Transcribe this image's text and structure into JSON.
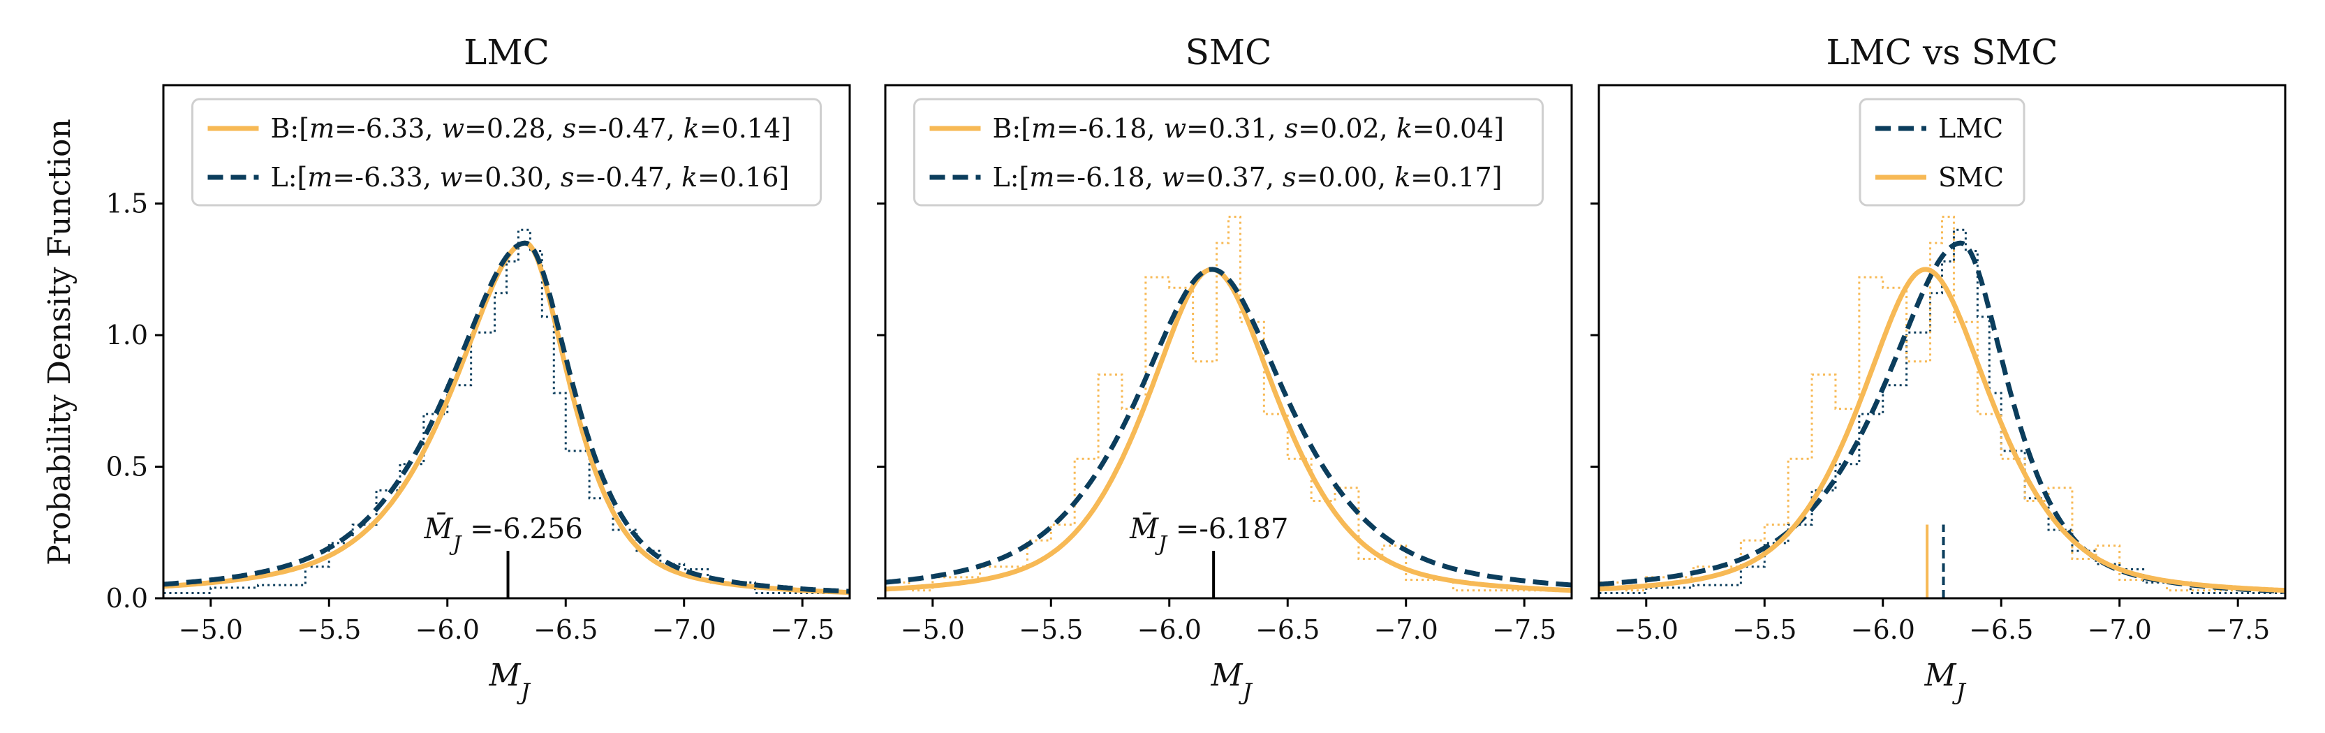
{
  "figure": {
    "ylabel": "Probability Density Function",
    "xlabel": "M_J",
    "xlim": [
      -4.8,
      -7.7
    ],
    "ylim": [
      0.0,
      1.95
    ],
    "xticks": [
      -5.0,
      -5.5,
      -6.0,
      -6.5,
      -7.0,
      -7.5
    ],
    "yticks": [
      0.0,
      0.5,
      1.0,
      1.5
    ],
    "colors": {
      "orange": "#f7b955",
      "navy": "#0b3d5c",
      "black": "#000000"
    }
  },
  "chart_data": [
    {
      "type": "line",
      "title": "LMC",
      "xlabel": "M_J",
      "ylabel": "Probability Density Function",
      "show_ylabels": true,
      "legend_position": "top-center",
      "legend": [
        {
          "label": "B:[m=-6.33, w=0.28, s=-0.47, k=0.14]",
          "color": "#f7b955",
          "style": "solid"
        },
        {
          "label": "L:[m=-6.33, w=0.30, s=-0.47, k=0.16]",
          "color": "#0b3d5c",
          "style": "dashed"
        }
      ],
      "series": [
        {
          "name": "B",
          "color": "#f7b955",
          "style": "solid",
          "m": -6.33,
          "w": 0.28,
          "s": -0.47,
          "k": 0.14,
          "peak": 1.35
        },
        {
          "name": "L",
          "color": "#0b3d5c",
          "style": "dashed",
          "m": -6.33,
          "w": 0.3,
          "s": -0.47,
          "k": 0.16,
          "peak": 1.35
        }
      ],
      "histograms": [
        {
          "color": "#0b3d5c",
          "edges": [
            -4.8,
            -5.0,
            -5.2,
            -5.4,
            -5.5,
            -5.6,
            -5.7,
            -5.8,
            -5.9,
            -6.0,
            -6.1,
            -6.2,
            -6.25,
            -6.3,
            -6.35,
            -6.4,
            -6.45,
            -6.5,
            -6.6,
            -6.7,
            -6.8,
            -6.9,
            -7.0,
            -7.1,
            -7.3,
            -7.7
          ],
          "values": [
            0.02,
            0.04,
            0.05,
            0.12,
            0.21,
            0.28,
            0.41,
            0.51,
            0.7,
            0.81,
            1.01,
            1.16,
            1.28,
            1.4,
            1.32,
            1.07,
            0.78,
            0.56,
            0.38,
            0.26,
            0.18,
            0.13,
            0.11,
            0.06,
            0.02
          ]
        }
      ],
      "mean_markers": [
        {
          "value": -6.256,
          "label": "M̄_J =-6.256",
          "color": "#000000",
          "style": "solid",
          "height": 0.18
        }
      ]
    },
    {
      "type": "line",
      "title": "SMC",
      "xlabel": "M_J",
      "ylabel": "",
      "show_ylabels": false,
      "legend_position": "top-center",
      "legend": [
        {
          "label": "B:[m=-6.18, w=0.31, s=0.02, k=0.04]",
          "color": "#f7b955",
          "style": "solid"
        },
        {
          "label": "L:[m=-6.18, w=0.37, s=0.00, k=0.17]",
          "color": "#0b3d5c",
          "style": "dashed"
        }
      ],
      "series": [
        {
          "name": "B",
          "color": "#f7b955",
          "style": "solid",
          "m": -6.18,
          "w": 0.31,
          "s": 0.02,
          "k": 0.04,
          "peak": 1.25
        },
        {
          "name": "L",
          "color": "#0b3d5c",
          "style": "dashed",
          "m": -6.18,
          "w": 0.37,
          "s": 0.0,
          "k": 0.17,
          "peak": 1.25
        }
      ],
      "histograms": [
        {
          "color": "#f7b955",
          "edges": [
            -4.8,
            -4.9,
            -5.0,
            -5.2,
            -5.4,
            -5.5,
            -5.6,
            -5.7,
            -5.8,
            -5.9,
            -6.0,
            -6.1,
            -6.2,
            -6.25,
            -6.3,
            -6.4,
            -6.5,
            -6.6,
            -6.7,
            -6.8,
            -6.9,
            -7.0,
            -7.2,
            -7.7
          ],
          "values": [
            0.06,
            0.03,
            0.08,
            0.12,
            0.22,
            0.28,
            0.53,
            0.85,
            0.72,
            1.22,
            1.18,
            0.9,
            1.35,
            1.45,
            1.05,
            0.7,
            0.53,
            0.37,
            0.42,
            0.15,
            0.2,
            0.07,
            0.03
          ]
        }
      ],
      "mean_markers": [
        {
          "value": -6.187,
          "label": "M̄_J =-6.187",
          "color": "#000000",
          "style": "solid",
          "height": 0.18
        }
      ]
    },
    {
      "type": "line",
      "title": "LMC vs SMC",
      "xlabel": "M_J",
      "ylabel": "",
      "show_ylabels": false,
      "legend_position": "top-center",
      "legend": [
        {
          "label": "LMC",
          "color": "#0b3d5c",
          "style": "dashed"
        },
        {
          "label": "SMC",
          "color": "#f7b955",
          "style": "solid"
        }
      ],
      "series": [
        {
          "name": "LMC",
          "color": "#0b3d5c",
          "style": "dashed",
          "m": -6.33,
          "w": 0.3,
          "s": -0.47,
          "k": 0.16,
          "peak": 1.35
        },
        {
          "name": "SMC",
          "color": "#f7b955",
          "style": "solid",
          "m": -6.18,
          "w": 0.31,
          "s": 0.02,
          "k": 0.04,
          "peak": 1.25
        }
      ],
      "histograms": [
        {
          "color": "#0b3d5c",
          "edges": [
            -4.8,
            -5.0,
            -5.2,
            -5.4,
            -5.5,
            -5.6,
            -5.7,
            -5.8,
            -5.9,
            -6.0,
            -6.1,
            -6.2,
            -6.25,
            -6.3,
            -6.35,
            -6.4,
            -6.45,
            -6.5,
            -6.6,
            -6.7,
            -6.8,
            -6.9,
            -7.0,
            -7.1,
            -7.3,
            -7.7
          ],
          "values": [
            0.02,
            0.04,
            0.05,
            0.12,
            0.21,
            0.28,
            0.41,
            0.51,
            0.7,
            0.81,
            1.01,
            1.16,
            1.28,
            1.4,
            1.32,
            1.07,
            0.78,
            0.56,
            0.38,
            0.26,
            0.18,
            0.13,
            0.11,
            0.06,
            0.02
          ]
        },
        {
          "color": "#f7b955",
          "edges": [
            -4.8,
            -4.9,
            -5.0,
            -5.2,
            -5.4,
            -5.5,
            -5.6,
            -5.7,
            -5.8,
            -5.9,
            -6.0,
            -6.1,
            -6.2,
            -6.25,
            -6.3,
            -6.4,
            -6.5,
            -6.6,
            -6.7,
            -6.8,
            -6.9,
            -7.0,
            -7.2,
            -7.7
          ],
          "values": [
            0.06,
            0.03,
            0.08,
            0.12,
            0.22,
            0.28,
            0.53,
            0.85,
            0.72,
            1.22,
            1.18,
            0.9,
            1.35,
            1.45,
            1.05,
            0.7,
            0.53,
            0.37,
            0.42,
            0.15,
            0.2,
            0.07,
            0.03
          ]
        }
      ],
      "mean_markers": [
        {
          "value": -6.256,
          "label": "",
          "color": "#0b3d5c",
          "style": "dashed",
          "height": 0.28
        },
        {
          "value": -6.187,
          "label": "",
          "color": "#f7b955",
          "style": "solid",
          "height": 0.28
        }
      ]
    }
  ]
}
